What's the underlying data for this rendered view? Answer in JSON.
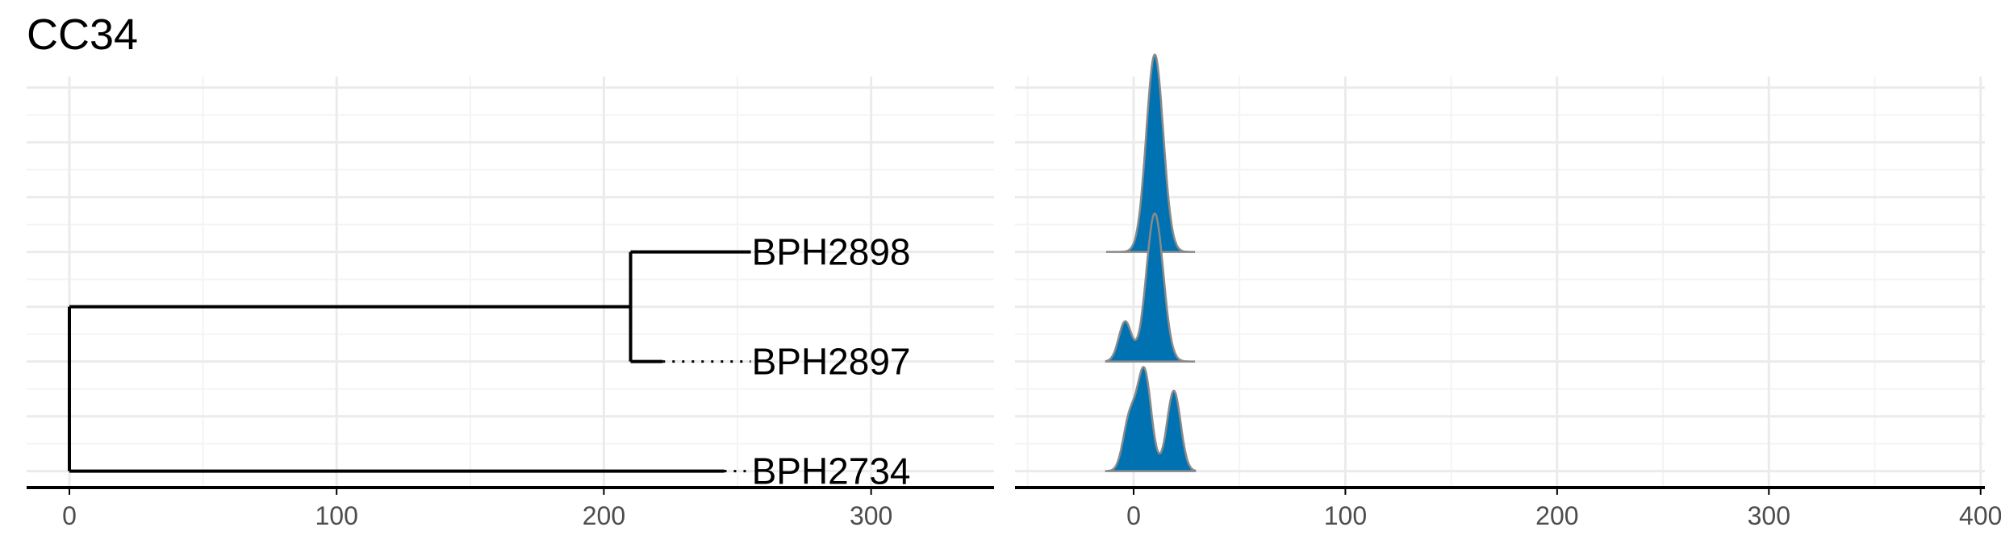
{
  "title": "CC34",
  "colors": {
    "grid_major": "#ebebeb",
    "grid_minor": "#f4f4f4",
    "axis": "#000000",
    "tree": "#000000",
    "density_fill": "#0072b2",
    "density_stroke": "#8a8a8a",
    "tick_text": "#4d4d4d"
  },
  "chart_data": [
    {
      "type": "tree",
      "panel": "phylogenetic-tree",
      "x_ticks": [
        "0",
        "100",
        "200",
        "300"
      ],
      "x_tick_values": [
        0,
        100,
        200,
        300
      ],
      "xlim": [
        -16,
        346
      ],
      "ylim": [
        0.7,
        8.2
      ],
      "grid": true,
      "nodes": [
        {
          "id": "root",
          "x": 0,
          "y": 2
        },
        {
          "id": "inner",
          "x": 210,
          "y": 4
        }
      ],
      "tips": [
        {
          "label": "BPH2898",
          "x": 255,
          "y": 5,
          "dotted_from": 255
        },
        {
          "label": "BPH2897",
          "x": 222,
          "y": 3,
          "dotted_from": 255
        },
        {
          "label": "BPH2734",
          "x": 245,
          "y": 1,
          "dotted_from": 255
        }
      ]
    },
    {
      "type": "ridgeline",
      "panel": "density-ridges",
      "x_ticks": [
        "0",
        "100",
        "200",
        "300",
        "400"
      ],
      "x_tick_values": [
        0,
        100,
        200,
        300,
        400
      ],
      "xlim": [
        -56,
        402
      ],
      "ylim": [
        0.7,
        8.2
      ],
      "grid": true,
      "series": [
        {
          "row": "BPH2898",
          "baseline": 5,
          "range": [
            -13,
            29
          ],
          "peaks": [
            {
              "mu": 10,
              "sd": 4,
              "h": 1
            }
          ],
          "height": 3.6
        },
        {
          "row": "BPH2897",
          "baseline": 3,
          "range": [
            -13,
            29
          ],
          "peaks": [
            {
              "mu": -4,
              "sd": 3,
              "h": 0.27
            },
            {
              "mu": 10,
              "sd": 4,
              "h": 1
            }
          ],
          "height": 2.7
        },
        {
          "row": "BPH2734",
          "baseline": 1,
          "range": [
            -13,
            29
          ],
          "peaks": [
            {
              "mu": -2,
              "sd": 3,
              "h": 0.45
            },
            {
              "mu": 5,
              "sd": 3.3,
              "h": 0.9
            },
            {
              "mu": 19,
              "sd": 3.2,
              "h": 0.72
            }
          ],
          "height": 1.9
        }
      ]
    }
  ]
}
